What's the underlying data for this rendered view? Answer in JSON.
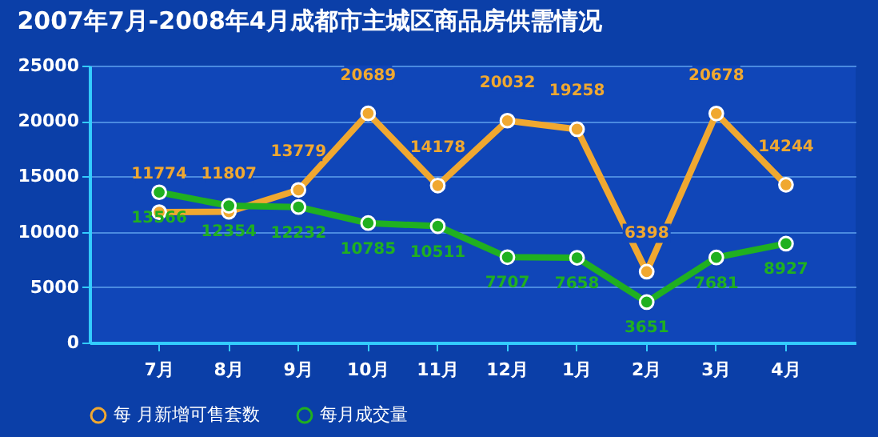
{
  "chart_data": {
    "type": "line",
    "title": "2007年7月-2008年4月成都市主城区商品房供需情况",
    "categories": [
      "7月",
      "8月",
      "9月",
      "10月",
      "11月",
      "12月",
      "1月",
      "2月",
      "3月",
      "4月"
    ],
    "series": [
      {
        "name": "每 月新增可售套数",
        "color": "#f0a830",
        "values": [
          11774,
          11807,
          13779,
          20689,
          14178,
          20032,
          19258,
          6398,
          20678,
          14244
        ]
      },
      {
        "name": "每月成交量",
        "color": "#20b020",
        "values": [
          13566,
          12354,
          12232,
          10785,
          10511,
          7707,
          7658,
          3651,
          7681,
          8927
        ]
      }
    ],
    "ylim": [
      0,
      25000
    ],
    "yticks": [
      0,
      5000,
      10000,
      15000,
      20000,
      25000
    ],
    "grid": "y",
    "legend": "bottom",
    "marker": "circle",
    "line_style": "solid",
    "data_labels": true
  }
}
